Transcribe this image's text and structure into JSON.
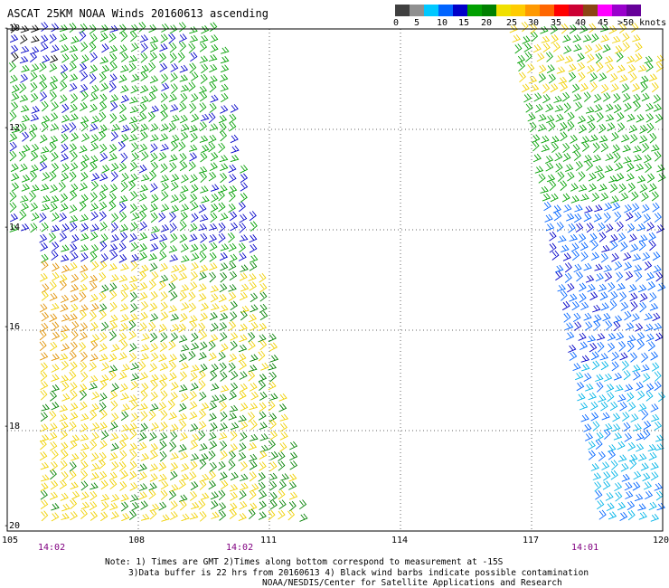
{
  "title": "ASCAT 25KM NOAA Winds 20160613 ascending",
  "legend": {
    "labels": [
      "0",
      "5",
      "10",
      "15",
      "20",
      "25",
      "30",
      "35",
      "40",
      "45",
      ">50 knots"
    ],
    "colors": [
      "#404040",
      "#909090",
      "#00c8ff",
      "#0064ff",
      "#0000c8",
      "#00a000",
      "#008000",
      "#f0e000",
      "#ffcc00",
      "#ff9900",
      "#ff6600",
      "#ff0000",
      "#cc0033",
      "#8b4513",
      "#ff00ff",
      "#9900cc",
      "#660099"
    ]
  },
  "axes": {
    "lat_labels": [
      "-10",
      "-12",
      "-14",
      "-16",
      "-18",
      "-20"
    ],
    "lon_labels": [
      "105",
      "108",
      "111",
      "114",
      "117",
      "120"
    ]
  },
  "pass_times": [
    "14:02",
    "14:02",
    "14:01"
  ],
  "notes": [
    "Note: 1) Times are GMT 2)Times along bottom correspond to measurement at -15S",
    "3)Data buffer is 22 hrs from 20160613 4) Black wind barbs indicate possible contamination",
    "NOAA/NESDIS/Center for Satellite Applications and Research"
  ]
}
